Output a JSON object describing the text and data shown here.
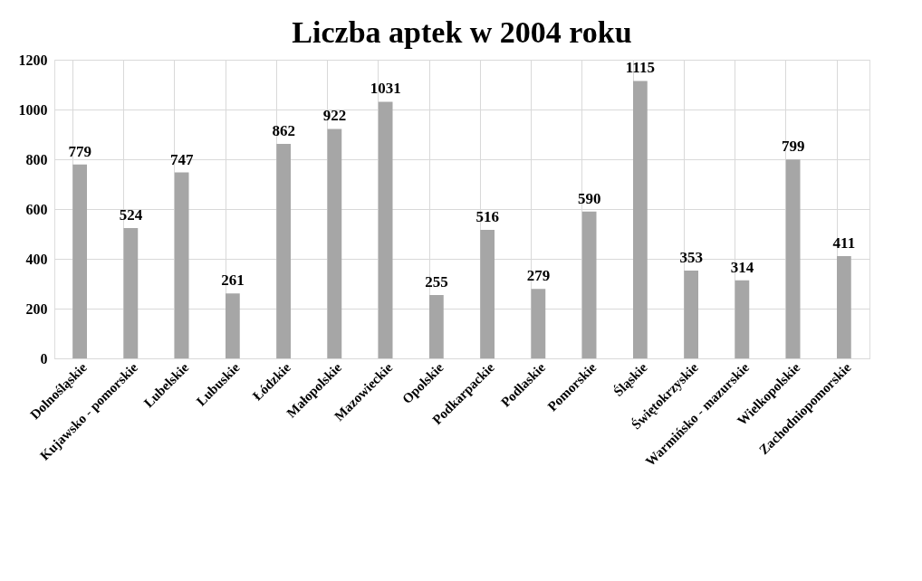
{
  "chart_data": {
    "type": "bar",
    "title": "Liczba aptek w 2004 roku",
    "categories": [
      "Dolnośląskie",
      "Kujawsko - pomorskie",
      "Lubelskie",
      "Lubuskie",
      "Łódzkie",
      "Małopolskie",
      "Mazowieckie",
      "Opolskie",
      "Podkarpackie",
      "Podlaskie",
      "Pomorskie",
      "Śląskie",
      "Świętokrzyskie",
      "Warmińsko - mazurskie",
      "Wielkopolskie",
      "Zachodniopomorskie"
    ],
    "values": [
      779,
      524,
      747,
      261,
      862,
      922,
      1031,
      255,
      516,
      279,
      590,
      1115,
      353,
      314,
      799,
      411
    ],
    "color": "#a6a6a6",
    "ylim": [
      0,
      1200
    ],
    "yticks": [
      0,
      200,
      400,
      600,
      800,
      1000,
      1200
    ],
    "grid": true,
    "data_labels": true
  }
}
